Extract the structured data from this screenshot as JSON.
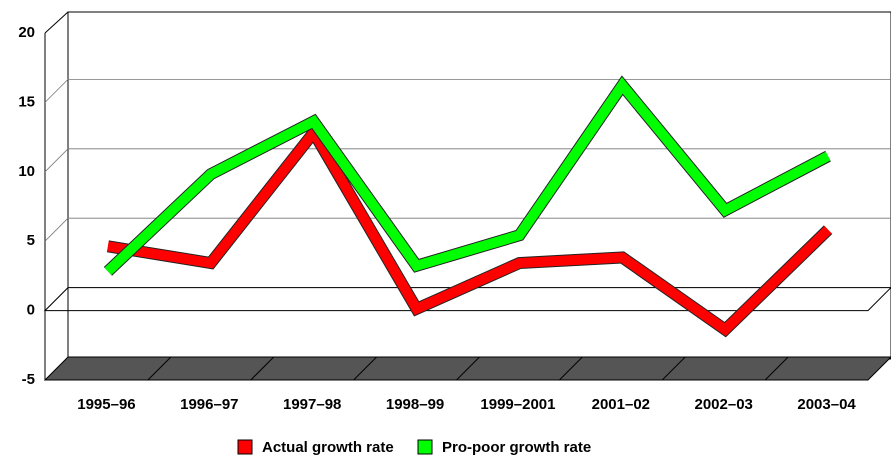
{
  "chart_data": {
    "type": "line",
    "categories": [
      "1995–96",
      "1996–97",
      "1997–98",
      "1998–99",
      "1999–2001",
      "2001–02",
      "2002–03",
      "2003–04"
    ],
    "series": [
      {
        "name": "Actual growth rate",
        "color": "#ff0000",
        "values": [
          3.8,
          2.6,
          12,
          -0.7,
          2.6,
          3,
          -2.2,
          5
        ]
      },
      {
        "name": "Pro-poor growth rate",
        "color": "#00ff00",
        "values": [
          2,
          9,
          12.8,
          2.4,
          4.6,
          15.4,
          6.4,
          10.3
        ]
      }
    ],
    "ylim": [
      -5,
      20
    ],
    "yticks": [
      -5,
      0,
      5,
      10,
      15,
      20
    ],
    "grid": true,
    "legend": "bottom"
  }
}
